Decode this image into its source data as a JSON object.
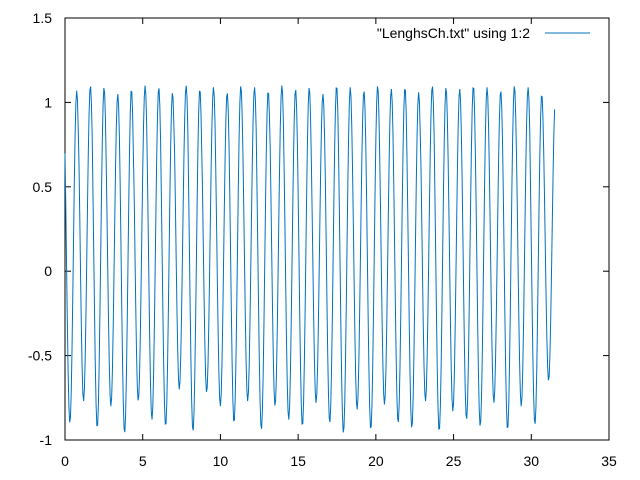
{
  "chart_data": {
    "type": "line",
    "title": "",
    "xlabel": "",
    "ylabel": "",
    "xlim": [
      0,
      35
    ],
    "ylim": [
      -1,
      1.5
    ],
    "x_ticks": [
      "0",
      "5",
      "10",
      "15",
      "20",
      "25",
      "30",
      "35"
    ],
    "y_ticks": [
      "-1",
      "-0.5",
      "0",
      "0.5",
      "1",
      "1.5"
    ],
    "grid": false,
    "legend_position": "top-right",
    "series": [
      {
        "name": "\"LenghsCh.txt\" using 1:2",
        "color": "#0072bd",
        "x_range": [
          0,
          31.5
        ],
        "period": 0.88,
        "peaks": [
          1.07,
          1.1,
          1.09,
          1.05,
          1.08,
          1.1,
          1.09,
          1.06,
          1.1,
          1.08,
          1.09,
          1.06,
          1.1,
          1.09,
          1.07,
          1.1,
          1.08,
          1.09,
          1.05,
          1.1,
          1.09,
          1.07,
          1.1,
          1.08,
          1.09,
          1.06,
          1.1,
          1.09,
          1.08,
          1.1,
          1.09,
          1.07,
          1.1,
          1.09,
          1.05,
          1.02
        ],
        "troughs": [
          -0.9,
          -0.77,
          -0.93,
          -0.8,
          -0.96,
          -0.77,
          -0.88,
          -0.92,
          -0.7,
          -0.95,
          -0.72,
          -0.8,
          -0.9,
          -0.77,
          -0.94,
          -0.8,
          -0.88,
          -0.92,
          -0.78,
          -0.9,
          -0.96,
          -0.82,
          -0.94,
          -0.79,
          -0.9,
          -0.93,
          -0.77,
          -0.95,
          -0.83,
          -0.88,
          -0.92,
          -0.78,
          -0.94,
          -0.8,
          -0.91,
          -0.65
        ]
      }
    ]
  }
}
